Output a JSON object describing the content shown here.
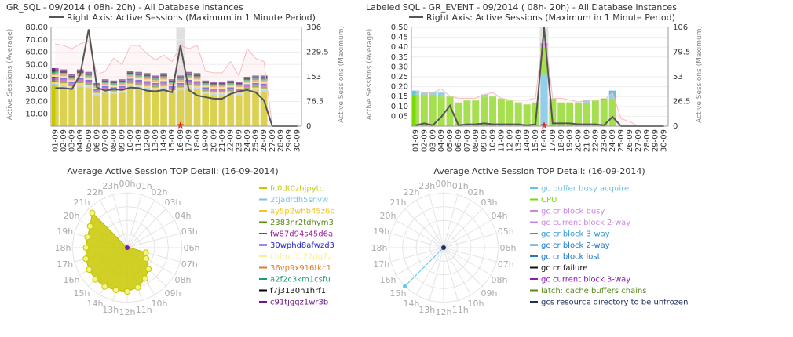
{
  "chart_data": [
    {
      "type": "bar",
      "title": "GR_SQL - 09/2014 ( 08h- 20h) - All Database Instances",
      "legend_line": "Right Axis: Active Sessions (Maximum in 1 Minute Period)",
      "ylabel_left": "Active Sessions (Average)",
      "ylabel_right": "Active Sessions (Maximum)",
      "y_ticks_left": [
        "80.00",
        "70.00",
        "60.00",
        "50.00",
        "40.00",
        "30.00",
        "20.00",
        "10.00"
      ],
      "y_ticks_right": [
        "306",
        "229.5",
        "153",
        "76.5",
        "0"
      ],
      "ylim_left": [
        0,
        80
      ],
      "ylim_right": [
        0,
        306
      ],
      "categories": [
        "01-09",
        "02-09",
        "03-09",
        "04-09",
        "05-09",
        "06-09",
        "07-09",
        "08-09",
        "09-09",
        "10-09",
        "11-09",
        "12-09",
        "13-09",
        "14-09",
        "15-09",
        "16-09",
        "17-09",
        "18-09",
        "19-09",
        "20-09",
        "21-09",
        "22-09",
        "23-09",
        "24-09",
        "25-09",
        "26-09",
        "27-09",
        "28-09",
        "29-09",
        "30-09"
      ],
      "highlight": "16-09",
      "stack_colors": [
        "#c8c800",
        "#9ed1e6",
        "#f2d34b",
        "#6e8b1e",
        "#b540b5",
        "#3b3bd1",
        "#f7e58a",
        "#e8915a",
        "#2e9e6e",
        "#111111",
        "#6a2a99"
      ],
      "totals": [
        47,
        46,
        42,
        46,
        44,
        35,
        38,
        37,
        38,
        45,
        44,
        43,
        41,
        43,
        38,
        41,
        44,
        43,
        37,
        36,
        36,
        37,
        36,
        40,
        41,
        41,
        0,
        0,
        0,
        0
      ],
      "base": [
        33,
        32,
        30,
        32,
        31,
        25,
        27,
        26,
        27,
        32,
        31,
        30,
        29,
        30,
        27,
        29,
        31,
        30,
        26,
        25,
        25,
        26,
        25,
        28,
        29,
        28,
        0,
        0,
        0,
        0
      ],
      "series": [
        {
          "name": "Right Axis: Active Sessions (Maximum in 1 Minute Period)",
          "values": [
            118,
            118,
            115,
            160,
            300,
            120,
            110,
            115,
            112,
            120,
            118,
            110,
            108,
            112,
            105,
            250,
            112,
            95,
            90,
            85,
            85,
            100,
            108,
            112,
            105,
            80,
            0,
            0,
            0,
            0
          ]
        },
        {
          "values": [
            255,
            250,
            240,
            255,
            265,
            160,
            170,
            210,
            190,
            250,
            250,
            225,
            205,
            220,
            200,
            250,
            240,
            250,
            170,
            165,
            165,
            200,
            155,
            240,
            210,
            200,
            0,
            0,
            0,
            0
          ]
        }
      ]
    },
    {
      "type": "bar",
      "title": "Labeled SQL - GR_EVENT - 09/2014 ( 08h- 20h) - All Database Instances",
      "legend_line": "Right Axis: Active Sessions (Maximum in 1 Minute Period)",
      "ylabel_left": "Active Sessions (Average)",
      "ylabel_right": "Active Sessions (Maximum)",
      "y_ticks_left": [
        "0.50",
        "0.45",
        "0.40",
        "0.35",
        "0.30",
        "0.25",
        "0.20",
        "0.15",
        "0.10",
        "0.05"
      ],
      "y_ticks_right": [
        "106",
        "79.5",
        "53",
        "26.5",
        "0"
      ],
      "ylim_left": [
        0,
        0.5
      ],
      "ylim_right": [
        0,
        106
      ],
      "categories": [
        "01-09",
        "02-09",
        "03-09",
        "04-09",
        "05-09",
        "06-09",
        "07-09",
        "08-09",
        "09-09",
        "10-09",
        "11-09",
        "12-09",
        "13-09",
        "14-09",
        "15-09",
        "16-09",
        "17-09",
        "18-09",
        "19-09",
        "20-09",
        "21-09",
        "22-09",
        "23-09",
        "24-09",
        "25-09",
        "26-09",
        "27-09",
        "28-09",
        "29-09",
        "30-09"
      ],
      "highlight": "16-09",
      "cpu": [
        0.16,
        0.16,
        0.16,
        0.15,
        0.15,
        0.12,
        0.13,
        0.13,
        0.15,
        0.15,
        0.14,
        0.13,
        0.12,
        0.11,
        0.12,
        0.14,
        0.14,
        0.12,
        0.12,
        0.12,
        0.12,
        0.13,
        0.14,
        0.14,
        0,
        0,
        0,
        0,
        0,
        0
      ],
      "gc_buffer": [
        0.02,
        0.01,
        0.01,
        0.02,
        0.0,
        0.0,
        0.0,
        0.0,
        0.01,
        0.0,
        0.0,
        0.0,
        0.0,
        0.0,
        0.0,
        0.26,
        0.0,
        0.0,
        0.0,
        0.0,
        0.01,
        0.0,
        0.0,
        0.04,
        0,
        0,
        0,
        0,
        0,
        0
      ],
      "series": [
        {
          "name": "Right Axis: Active Sessions (Maximum in 1 Minute Period)",
          "values": [
            1,
            3,
            1,
            10,
            22,
            1,
            2,
            2,
            3,
            2,
            2,
            2,
            2,
            1,
            2,
            106,
            3,
            3,
            3,
            2,
            2,
            2,
            1,
            10,
            0,
            0,
            0,
            0,
            0,
            0
          ]
        },
        {
          "values": [
            38,
            36,
            36,
            40,
            32,
            30,
            30,
            30,
            34,
            36,
            30,
            28,
            28,
            28,
            30,
            106,
            30,
            30,
            28,
            26,
            28,
            28,
            28,
            36,
            8,
            5,
            0,
            0,
            0,
            0
          ]
        }
      ]
    },
    {
      "type": "radar",
      "title": "Average Active Session TOP Detail: (16-09-2014)",
      "angle_labels": [
        "00h",
        "01h",
        "02h",
        "03h",
        "04h",
        "05h",
        "06h",
        "07h",
        "08h",
        "09h",
        "10h",
        "11h",
        "12h",
        "13h",
        "14h",
        "15h",
        "16h",
        "17h",
        "18h",
        "19h",
        "20h",
        "21h",
        "22h",
        "23h"
      ],
      "max": 1.0,
      "fill_color": "#c8c800",
      "values": [
        0.02,
        0,
        0,
        0,
        0,
        0,
        0.05,
        0.35,
        0.4,
        0.55,
        0.65,
        0.75,
        0.8,
        0.8,
        0.82,
        0.82,
        0.8,
        0.78,
        0.75,
        0.75,
        0.78,
        0.9,
        0,
        0
      ],
      "legend": [
        {
          "label": "fc0dt0zhjpytd",
          "color": "#c8c800"
        },
        {
          "label": "2tjadrdh5snvw",
          "color": "#7ec3e6"
        },
        {
          "label": "ay5p2whb45z6p",
          "color": "#f2c521"
        },
        {
          "label": "2383nr2tdhym3",
          "color": "#5a8a1a"
        },
        {
          "label": "fw87d94s45d6a",
          "color": "#a020a0"
        },
        {
          "label": "30wphd8afwzd3",
          "color": "#2626c8"
        },
        {
          "label": "cbfmb1t27dq7z",
          "color": "#f6ef99"
        },
        {
          "label": "36vp9x916tkc1",
          "color": "#e47a28"
        },
        {
          "label": "a2f2c3km1csfu",
          "color": "#1e9c6a"
        },
        {
          "label": "f7j3130n1hrf1",
          "color": "#000000"
        },
        {
          "label": "c91tjgqz1wr3b",
          "color": "#6a1a8a"
        }
      ]
    },
    {
      "type": "radar",
      "title": "Average Active Session TOP Detail: (16-09-2014)",
      "angle_labels": [
        "00h",
        "01h",
        "02h",
        "03h",
        "04h",
        "05h",
        "06h",
        "07h",
        "08h",
        "09h",
        "10h",
        "11h",
        "12h",
        "13h",
        "14h",
        "15h",
        "16h",
        "17h",
        "18h",
        "19h",
        "20h",
        "21h",
        "22h",
        "23h"
      ],
      "max": 1.0,
      "spoke_hour": 15,
      "spoke_value": 1.0,
      "legend": [
        {
          "label": "gc buffer busy acquire",
          "color": "#6ac1ea"
        },
        {
          "label": "CPU",
          "color": "#77dd00"
        },
        {
          "label": "gc cr block busy",
          "color": "#c888e0"
        },
        {
          "label": "gc current block 2-way",
          "color": "#c888e0"
        },
        {
          "label": "gc cr block 3-way",
          "color": "#2a9ad6"
        },
        {
          "label": "gc cr block 2-way",
          "color": "#1e78c8"
        },
        {
          "label": "gc cr block lost",
          "color": "#1e78c8"
        },
        {
          "label": "gc cr failure",
          "color": "#111111"
        },
        {
          "label": "gc current block 3-way",
          "color": "#8a1ab0"
        },
        {
          "label": "latch: cache buffers chains",
          "color": "#5a8a1a"
        },
        {
          "label": "gcs resource directory to be unfrozen",
          "color": "#203060"
        }
      ]
    }
  ]
}
